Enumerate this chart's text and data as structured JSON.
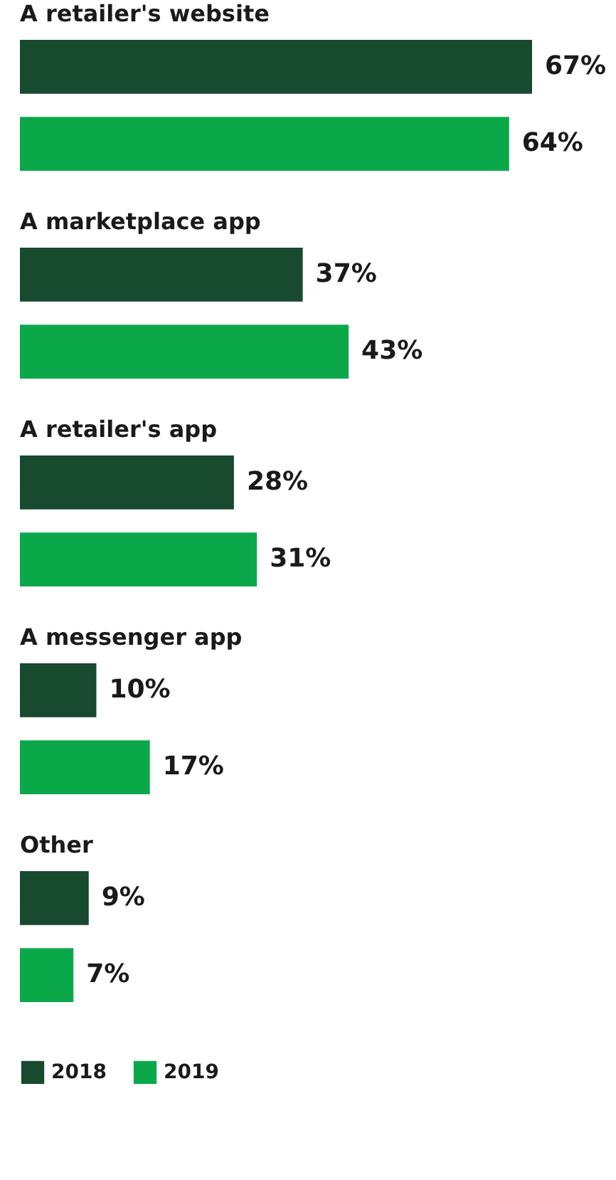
{
  "chart_data": {
    "type": "bar",
    "orientation": "horizontal",
    "categories": [
      "A retailer's website",
      "A marketplace app",
      "A retailer's app",
      "A messenger app",
      "Other"
    ],
    "series": [
      {
        "name": "2018",
        "color": "#174a2e",
        "values": [
          67,
          37,
          28,
          10,
          9
        ],
        "value_labels": [
          "67%",
          "37%",
          "28%",
          "10%",
          "9%"
        ]
      },
      {
        "name": "2019",
        "color": "#0ba84a",
        "values": [
          64,
          43,
          31,
          17,
          7
        ],
        "value_labels": [
          "64%",
          "43%",
          "31%",
          "17%",
          "7%"
        ]
      }
    ],
    "legend": "bottom left"
  }
}
